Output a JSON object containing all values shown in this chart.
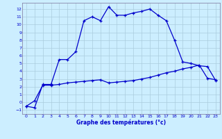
{
  "title": "Graphe des températures (°c)",
  "bg_color": "#cceeff",
  "grid_color": "#aaccdd",
  "line_color": "#0000cc",
  "spine_color": "#8888aa",
  "xlim": [
    -0.5,
    23.5
  ],
  "ylim": [
    -1.5,
    12.8
  ],
  "yticks": [
    -1,
    0,
    1,
    2,
    3,
    4,
    5,
    6,
    7,
    8,
    9,
    10,
    11,
    12
  ],
  "xticks": [
    0,
    1,
    2,
    3,
    4,
    5,
    6,
    7,
    8,
    9,
    10,
    11,
    12,
    13,
    14,
    15,
    16,
    17,
    18,
    19,
    20,
    21,
    22,
    23
  ],
  "series1_x": [
    0,
    1,
    2,
    3,
    4,
    5,
    6,
    7,
    8,
    9,
    10,
    11,
    12,
    13,
    14,
    15,
    16,
    17,
    18,
    19,
    20,
    21,
    22,
    23
  ],
  "series1_y": [
    -0.5,
    -0.7,
    2.3,
    2.3,
    5.5,
    5.5,
    6.5,
    10.5,
    11.0,
    10.5,
    12.3,
    11.2,
    11.2,
    11.5,
    11.7,
    12.0,
    11.2,
    10.5,
    8.0,
    5.2,
    5.0,
    4.7,
    4.6,
    2.8
  ],
  "series2_x": [
    0,
    1,
    2,
    3,
    4,
    5,
    6,
    7,
    8,
    9,
    10,
    11,
    12,
    13,
    14,
    15,
    16,
    17,
    18,
    19,
    20,
    21,
    22,
    23
  ],
  "series2_y": [
    -0.5,
    0.2,
    2.2,
    2.2,
    2.3,
    2.5,
    2.6,
    2.7,
    2.8,
    2.9,
    2.5,
    2.6,
    2.7,
    2.8,
    3.0,
    3.2,
    3.5,
    3.8,
    4.0,
    4.3,
    4.5,
    4.8,
    3.1,
    2.9
  ]
}
